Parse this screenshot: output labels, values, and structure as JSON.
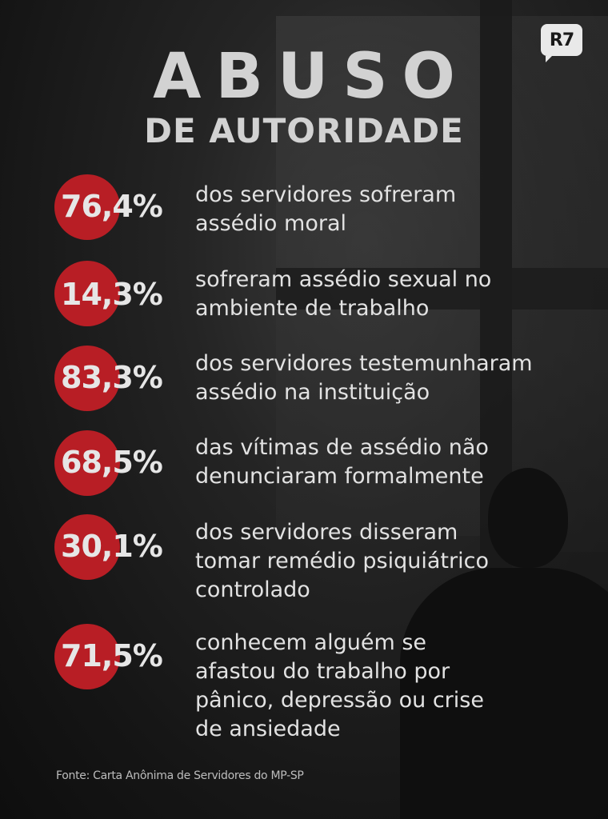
{
  "brand": {
    "logo_text": "R7"
  },
  "title": {
    "line1": "ABUSO",
    "line2": "DE AUTORIDADE"
  },
  "colors": {
    "accent_red": "#b81e25",
    "text": "#e2e2e2",
    "background": "#141414"
  },
  "stats": [
    {
      "percent": "76,4%",
      "text": "dos servidores sofreram\nassédio moral"
    },
    {
      "percent": "14,3%",
      "text": "sofreram assédio sexual no\nambiente de trabalho"
    },
    {
      "percent": "83,3%",
      "text": "dos servidores testemunharam\nassédio na instituição"
    },
    {
      "percent": "68,5%",
      "text": "das vítimas de assédio não\ndenunciaram formalmente"
    },
    {
      "percent": "30,1%",
      "text": "dos servidores disseram\ntomar remédio psiquiátrico\ncontrolado"
    },
    {
      "percent": "71,5%",
      "text": "conhecem alguém se\nafastou do trabalho por\npânico, depressão ou crise\nde ansiedade"
    }
  ],
  "source": "Fonte: Carta Anônima de Servidores do MP-SP"
}
